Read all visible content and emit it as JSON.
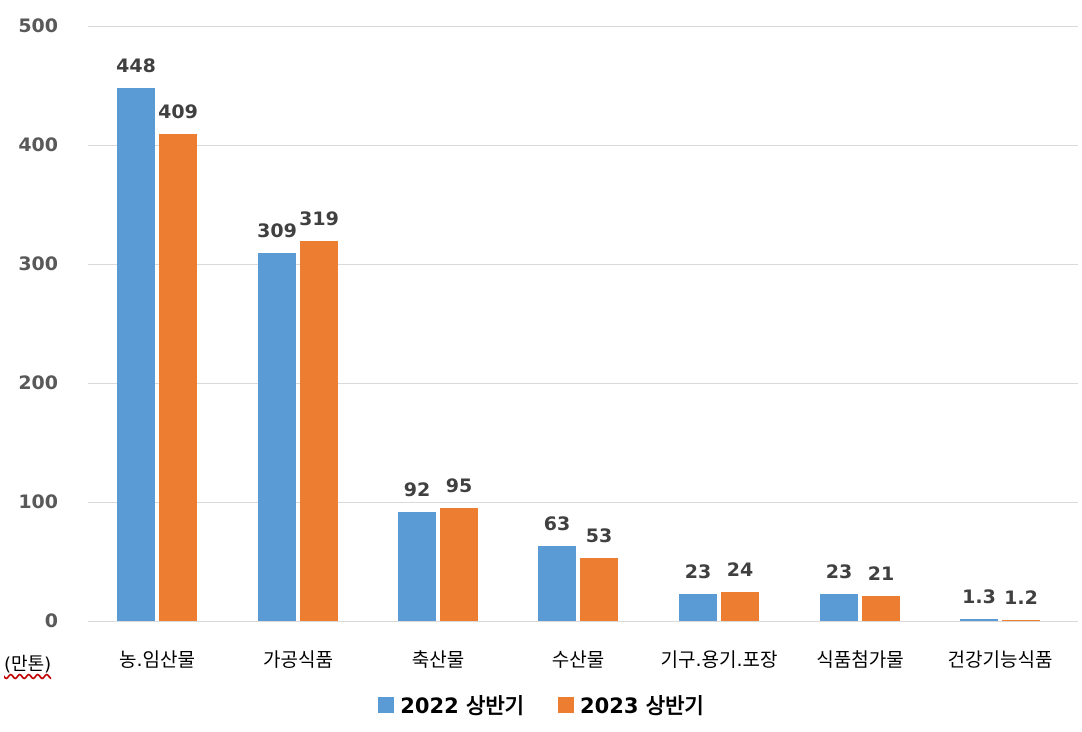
{
  "chart_data": {
    "type": "bar",
    "title": "",
    "xlabel": "",
    "ylabel": "(만톤)",
    "ylim": [
      0,
      500
    ],
    "yticks": [
      0,
      100,
      200,
      300,
      400,
      500
    ],
    "grid": true,
    "legend_position": "bottom",
    "categories": [
      "농.임산물",
      "가공식품",
      "축산물",
      "수산물",
      "기구.용기.포장",
      "식품첨가물",
      "건강기능식품"
    ],
    "series": [
      {
        "name": "2022 상반기",
        "color": "#5b9bd5",
        "values": [
          448,
          309,
          92,
          63,
          23,
          23,
          1.3
        ],
        "labels": [
          "448",
          "309",
          "92",
          "63",
          "23",
          "23",
          "1.3"
        ]
      },
      {
        "name": "2023 상반기",
        "color": "#ed7d31",
        "values": [
          409,
          319,
          95,
          53,
          24,
          21,
          1.2
        ],
        "labels": [
          "409",
          "319",
          "95",
          "53",
          "24",
          "21",
          "1.2"
        ]
      }
    ]
  },
  "axis": {
    "unit_label": "(만톤)",
    "ytick_labels": [
      "0",
      "100",
      "200",
      "300",
      "400",
      "500"
    ]
  },
  "legend": {
    "items": [
      {
        "label": "2022 상반기",
        "color": "#5b9bd5"
      },
      {
        "label": "2023 상반기",
        "color": "#ed7d31"
      }
    ]
  }
}
